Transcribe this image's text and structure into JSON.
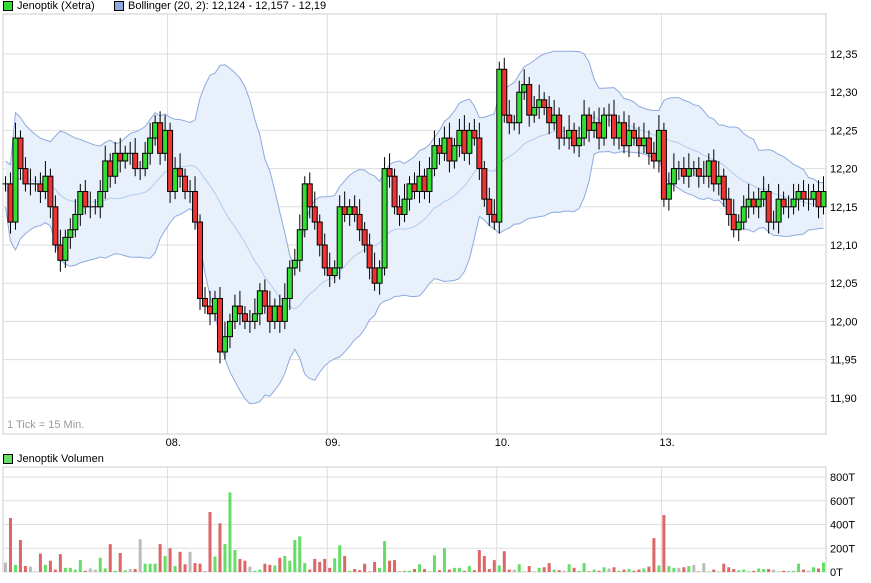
{
  "legend": {
    "price_label": "Jenoptik (Xetra)",
    "price_color": "#33dd33",
    "bollinger_label": "Bollinger (20, 2): 12,124 - 12,157 - 12,19",
    "bollinger_color": "#8eaadf",
    "volume_label": "Jenoptik Volumen",
    "volume_color": "#66dd66"
  },
  "tick_note": "1 Tick = 15 Min.",
  "chart_data": [
    {
      "type": "candlestick",
      "title": "",
      "interval": "15 Min.",
      "x_tick_labels": [
        "08.",
        "09.",
        "10.",
        "13."
      ],
      "x_tick_positions_bar_index": [
        33,
        65,
        99,
        132
      ],
      "y_ticks": [
        "12,35",
        "12,30",
        "12,25",
        "12,20",
        "12,15",
        "12,10",
        "12,05",
        "12,00",
        "11,95",
        "11,90"
      ],
      "ylim": [
        11.86,
        12.4
      ],
      "grid": true,
      "colors": {
        "up": "#33dd33",
        "down": "#ee3333",
        "band_fill": "#e8f0fc",
        "band_line": "#8eaadf",
        "band_mid": "#b0ccf0"
      },
      "bollinger": {
        "period": 20,
        "stddev": 2,
        "last": {
          "lower": 12.124,
          "middle": 12.157,
          "upper": 12.19
        }
      },
      "close": [
        12.18,
        12.13,
        12.24,
        12.2,
        12.18,
        12.18,
        12.18,
        12.17,
        12.19,
        12.15,
        12.1,
        12.08,
        12.11,
        12.12,
        12.14,
        12.17,
        12.15,
        12.15,
        12.15,
        12.17,
        12.21,
        12.19,
        12.22,
        12.21,
        12.22,
        12.22,
        12.2,
        12.2,
        12.22,
        12.24,
        12.26,
        12.22,
        12.25,
        12.17,
        12.2,
        12.19,
        12.17,
        12.17,
        12.13,
        12.03,
        12.02,
        12.01,
        12.03,
        11.96,
        11.98,
        12.0,
        12.02,
        12.01,
        12.0,
        12.0,
        12.01,
        12.04,
        12.02,
        12.0,
        12.02,
        12.0,
        12.03,
        12.07,
        12.08,
        12.12,
        12.18,
        12.15,
        12.13,
        12.1,
        12.07,
        12.06,
        12.07,
        12.15,
        12.14,
        12.15,
        12.14,
        12.12,
        12.1,
        12.07,
        12.05,
        12.07,
        12.2,
        12.19,
        12.15,
        12.14,
        12.16,
        12.18,
        12.17,
        12.19,
        12.17,
        12.2,
        12.23,
        12.22,
        12.24,
        12.21,
        12.23,
        12.25,
        12.22,
        12.25,
        12.24,
        12.2,
        12.16,
        12.14,
        12.13,
        12.33,
        12.27,
        12.26,
        12.26,
        12.3,
        12.31,
        12.27,
        12.28,
        12.29,
        12.28,
        12.26,
        12.27,
        12.24,
        12.24,
        12.25,
        12.23,
        12.24,
        12.27,
        12.25,
        12.26,
        12.24,
        12.27,
        12.27,
        12.24,
        12.26,
        12.23,
        12.25,
        12.24,
        12.23,
        12.24,
        12.22,
        12.21,
        12.25,
        12.16,
        12.18,
        12.2,
        12.2,
        12.19,
        12.2,
        12.2,
        12.19,
        12.19,
        12.21,
        12.18,
        12.19,
        12.16,
        12.14,
        12.12,
        12.13,
        12.15,
        12.16,
        12.15,
        12.16,
        12.17,
        12.13,
        12.13,
        12.16,
        12.15,
        12.15,
        12.16,
        12.17,
        12.16,
        12.16,
        12.17,
        12.15,
        12.17
      ]
    },
    {
      "type": "bar",
      "title": "",
      "unit": "T",
      "y_ticks": [
        "800T",
        "600T",
        "400T",
        "200T",
        "0T"
      ],
      "ylim": [
        0,
        800
      ],
      "grid": true,
      "colors": {
        "up": "#66dd66",
        "down": "#dd6666",
        "unchanged": "#bbbbbb"
      },
      "values": [
        80,
        455,
        60,
        270,
        50,
        45,
        5,
        155,
        60,
        95,
        20,
        150,
        35,
        35,
        20,
        100,
        10,
        30,
        20,
        120,
        30,
        235,
        10,
        160,
        15,
        25,
        25,
        275,
        70,
        70,
        70,
        235,
        135,
        200,
        50,
        170,
        65,
        170,
        75,
        70,
        5,
        505,
        130,
        410,
        235,
        670,
        185,
        110,
        95,
        45,
        10,
        20,
        70,
        60,
        55,
        120,
        135,
        95,
        270,
        300,
        75,
        20,
        110,
        85,
        110,
        35,
        115,
        225,
        135,
        10,
        25,
        15,
        70,
        5,
        85,
        35,
        260,
        95,
        100,
        5,
        10,
        10,
        25,
        65,
        25,
        5,
        140,
        15,
        200,
        20,
        35,
        35,
        10,
        50,
        15,
        185,
        135,
        25,
        100,
        55,
        175,
        20,
        20,
        65,
        5,
        50,
        5,
        35,
        40,
        75,
        20,
        15,
        10,
        65,
        35,
        10,
        75,
        5,
        20,
        10,
        40,
        30,
        40,
        10,
        20,
        25,
        10,
        20,
        30,
        45,
        285,
        55,
        480,
        50,
        35,
        35,
        40,
        50,
        60,
        5,
        75,
        5,
        20,
        5,
        70,
        40,
        25,
        15,
        20,
        5,
        10,
        30,
        25,
        25,
        20,
        5,
        10,
        10,
        10,
        70,
        20,
        10,
        40,
        30,
        80
      ]
    }
  ]
}
